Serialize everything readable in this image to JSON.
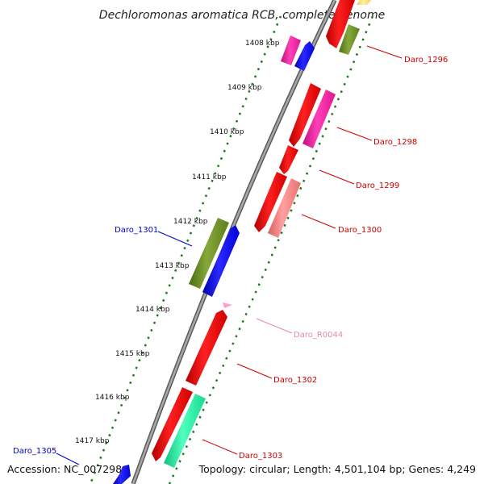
{
  "title": "Dechloromonas aromatica RCB, complete genome",
  "footer": {
    "accession": "Accession: NC_007298",
    "summary": "Topology: circular; Length: 4,501,104 bp; Genes: 4,249"
  },
  "ticks": [
    "1408 kbp",
    "1409 kbp",
    "1410 kbp",
    "1411 kbp",
    "1412 kbp",
    "1413 kbp",
    "1414 kbp",
    "1415 kbp",
    "1416 kbp",
    "1417 kbp"
  ],
  "gene_labels": [
    {
      "id": "daro-1296",
      "text": "Daro_1296",
      "color": "#cc0000"
    },
    {
      "id": "daro-1298",
      "text": "Daro_1298",
      "color": "#cc0000"
    },
    {
      "id": "daro-1299",
      "text": "Daro_1299",
      "color": "#cc0000"
    },
    {
      "id": "daro-1300",
      "text": "Daro_1300",
      "color": "#cc0000"
    },
    {
      "id": "daro-1301",
      "text": "Daro_1301",
      "color": "#0000cc"
    },
    {
      "id": "daro-r0044",
      "text": "Daro_R0044",
      "color": "#e58aa6"
    },
    {
      "id": "daro-1302",
      "text": "Daro_1302",
      "color": "#cc0000"
    },
    {
      "id": "daro-1303",
      "text": "Daro_1303",
      "color": "#cc0000"
    },
    {
      "id": "daro-1305",
      "text": "Daro_1305",
      "color": "#0000cc"
    }
  ],
  "colors": {
    "backbone": "#8c8c8c",
    "tick_dots": "#1a7a1a",
    "red": "#ff0000",
    "pink": "#ff1aa3",
    "blue": "#0000ff",
    "olive": "#6b8e23",
    "salmon": "#f08080",
    "mint": "#19f5a0",
    "light_pink": "#ff9ec8",
    "yellow": "#ffe36e"
  }
}
